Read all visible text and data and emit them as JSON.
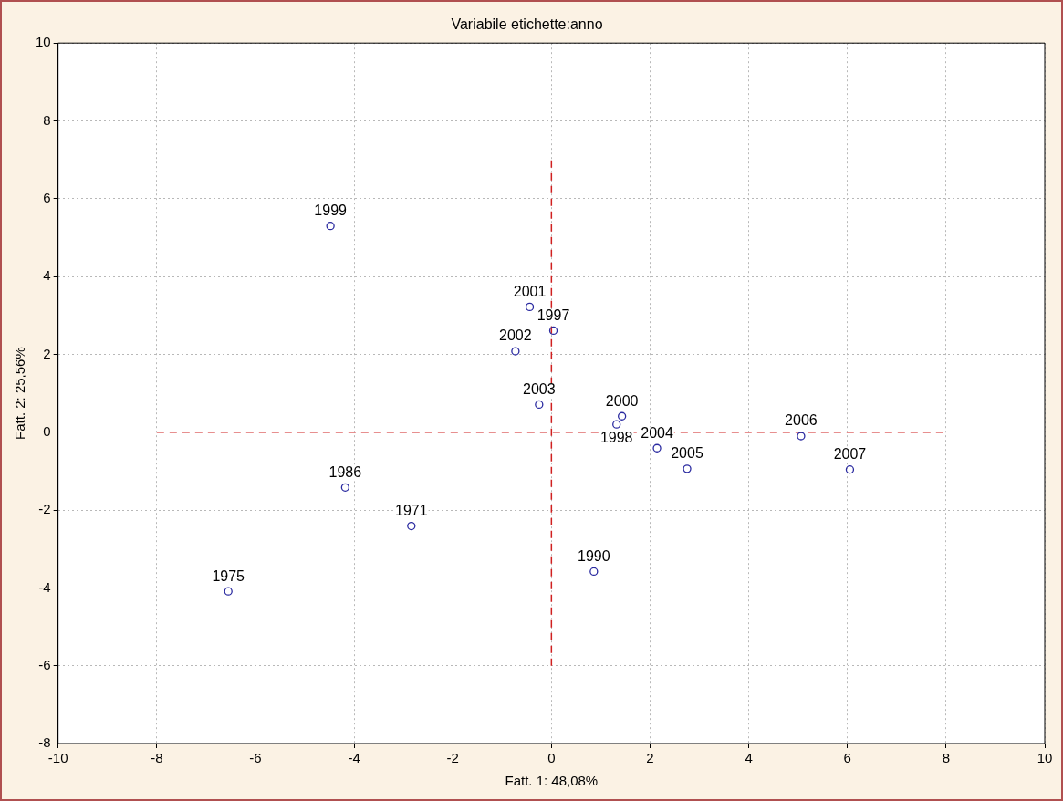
{
  "chart_data": {
    "type": "scatter",
    "title": "Variabile etichette:anno",
    "xlabel": "Fatt. 1: 48,08%",
    "ylabel": "Fatt. 2: 25,56%",
    "xlim": [
      -10,
      10
    ],
    "xticks": [
      -10,
      -8,
      -6,
      -4,
      -2,
      0,
      2,
      4,
      6,
      8,
      10
    ],
    "ylim": [
      -8,
      10
    ],
    "yticks": [
      -8,
      -6,
      -4,
      -2,
      0,
      2,
      4,
      6,
      8,
      10
    ],
    "grid": true,
    "legend": false,
    "series": [
      {
        "color": "#2a2aa0",
        "marker": "circle",
        "x": [
          -4.48,
          -0.44,
          0.04,
          -0.73,
          -0.25,
          1.43,
          1.32,
          2.14,
          2.75,
          5.06,
          6.05,
          -4.18,
          -2.84,
          -6.55,
          0.86
        ],
        "values": [
          5.3,
          3.22,
          2.61,
          2.08,
          0.71,
          0.41,
          0.2,
          -0.41,
          -0.94,
          -0.1,
          -0.96,
          -1.42,
          -2.41,
          -4.09,
          -3.58
        ]
      },
      {
        "type": "line",
        "color": "#d02020",
        "marker": "none",
        "line_style": "dashed",
        "x": [
          -8,
          8
        ],
        "values": [
          0,
          0
        ]
      },
      {
        "type": "line",
        "color": "#d02020",
        "marker": "none",
        "line_style": "dashed",
        "x": [
          0,
          0
        ],
        "values": [
          -6,
          7
        ]
      }
    ],
    "annotations": [
      {
        "text": "1999",
        "x": -4.48,
        "y": 5.3
      },
      {
        "text": "2001",
        "x": -0.44,
        "y": 3.22
      },
      {
        "text": "1997",
        "x": 0.04,
        "y": 2.61
      },
      {
        "text": "2002",
        "x": -0.73,
        "y": 2.08
      },
      {
        "text": "2003",
        "x": -0.25,
        "y": 0.71
      },
      {
        "text": "2000",
        "x": 1.43,
        "y": 0.41
      },
      {
        "text": "1998",
        "x": 1.32,
        "y": 0.2
      },
      {
        "text": "2004",
        "x": 2.14,
        "y": -0.41
      },
      {
        "text": "2005",
        "x": 2.75,
        "y": -0.94
      },
      {
        "text": "2006",
        "x": 5.06,
        "y": -0.1
      },
      {
        "text": "2007",
        "x": 6.05,
        "y": -0.96
      },
      {
        "text": "1986",
        "x": -4.18,
        "y": -1.42
      },
      {
        "text": "1971",
        "x": -2.84,
        "y": -2.41
      },
      {
        "text": "1975",
        "x": -6.55,
        "y": -4.09
      },
      {
        "text": "1990",
        "x": 0.86,
        "y": -3.58
      }
    ]
  }
}
